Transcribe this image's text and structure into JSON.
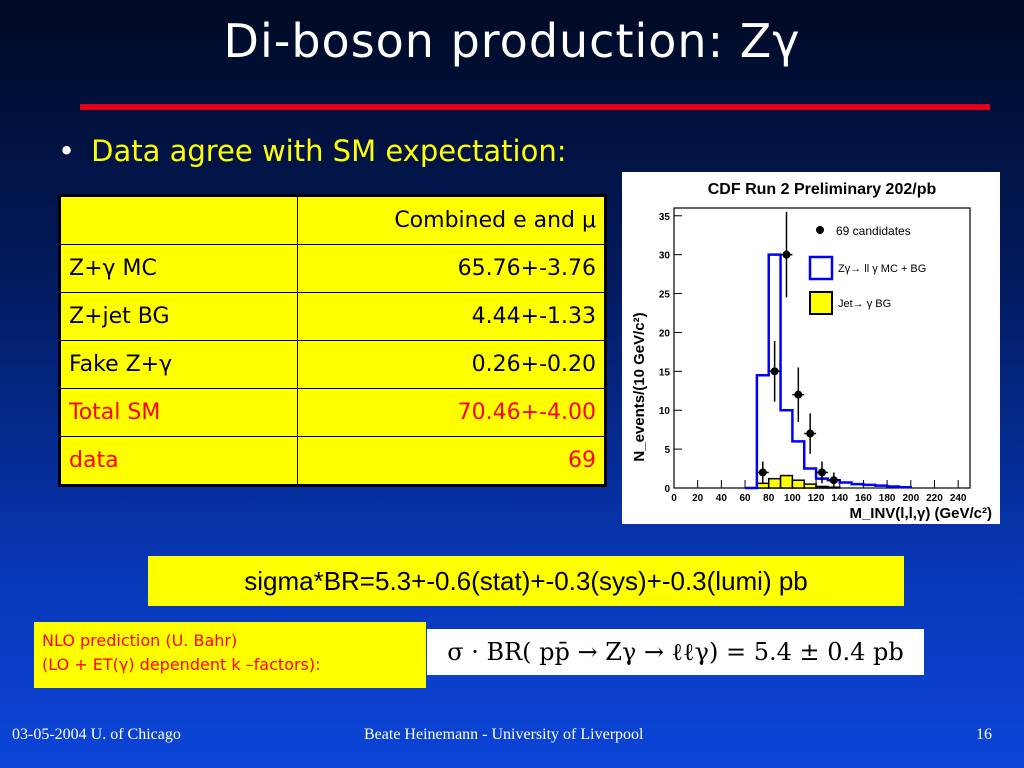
{
  "title": "Di-boson production: Zγ",
  "bullet": "Data agree with SM expectation:",
  "table": {
    "header": [
      "",
      "Combined e and μ"
    ],
    "rows": [
      {
        "label": "Z+γ MC",
        "value": "65.76+-3.76",
        "red": false
      },
      {
        "label": "Z+jet BG",
        "value": "4.44+-1.33",
        "red": false
      },
      {
        "label": "Fake Z+γ",
        "value": "0.26+-0.20",
        "red": false
      },
      {
        "label": "Total SM",
        "value": "70.46+-4.00",
        "red": true
      },
      {
        "label": "data",
        "value": "69",
        "red": true
      }
    ]
  },
  "sigma_box": "sigma*BR=5.3+-0.6(stat)+-0.3(sys)+-0.3(lumi) pb",
  "nlo": {
    "line1": "NLO prediction (U. Bahr)",
    "line2": "(LO + ET(γ) dependent k –factors):"
  },
  "formula": "σ · BR( pp̄ → Zγ → ℓℓγ) = 5.4 ± 0.4 pb",
  "footer": {
    "left": "03-05-2004 U. of Chicago",
    "center": "Beate Heinemann - University of Liverpool",
    "right": "16"
  },
  "colors": {
    "accent_red": "#e3001b",
    "box_yellow": "#ffff00",
    "mc_line": "#0000ff"
  },
  "chart_data": {
    "type": "bar",
    "title": "CDF Run 2 Preliminary 202/pb",
    "xlabel": "M_INV(l,l,γ) (GeV/c²)",
    "ylabel": "N_events/(10 GeV/c²)",
    "xlim": [
      0,
      250
    ],
    "ylim": [
      0,
      36
    ],
    "x_ticks": [
      0,
      20,
      40,
      60,
      80,
      100,
      120,
      140,
      160,
      180,
      200,
      220,
      240
    ],
    "y_ticks": [
      0,
      5,
      10,
      15,
      20,
      25,
      30,
      35
    ],
    "legend": [
      "69 candidates",
      "Zγ→ ll γ MC + BG",
      "Jet→ γ BG"
    ],
    "legend_position": "top-right",
    "bin_edges": [
      70,
      80,
      90,
      100,
      110,
      120,
      130,
      140,
      150,
      160,
      170,
      180,
      190,
      200
    ],
    "series": [
      {
        "name": "Zγ→ ll γ MC + BG",
        "values": [
          14.5,
          30,
          10,
          6,
          2.5,
          1.2,
          1,
          0.7,
          0.5,
          0.4,
          0.3,
          0.2,
          0.1
        ]
      },
      {
        "name": "Jet→ γ BG",
        "values": [
          0.6,
          1.2,
          1.6,
          1.0,
          0.5,
          0.2,
          0.1,
          0,
          0,
          0,
          0,
          0,
          0
        ]
      }
    ],
    "points": [
      {
        "x": 75,
        "y": 2,
        "err": 1.4
      },
      {
        "x": 85,
        "y": 15,
        "err": 3.9
      },
      {
        "x": 95,
        "y": 30,
        "err": 5.5
      },
      {
        "x": 105,
        "y": 12,
        "err": 3.5
      },
      {
        "x": 115,
        "y": 7,
        "err": 2.6
      },
      {
        "x": 125,
        "y": 2,
        "err": 1.4
      },
      {
        "x": 135,
        "y": 1,
        "err": 1.0
      }
    ]
  }
}
